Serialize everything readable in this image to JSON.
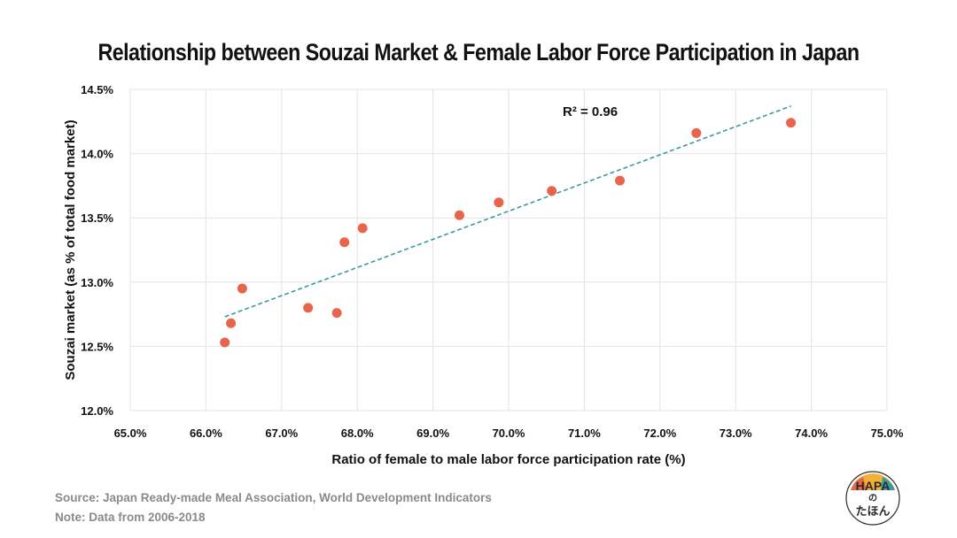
{
  "chart_data": {
    "type": "scatter",
    "title": "Relationship between Souzai Market & Female Labor Force Participation in Japan",
    "xlabel": "Ratio of female to male labor force participation rate (%)",
    "ylabel": "Souzai market (as % of total food market)",
    "xlim": [
      65.0,
      75.0
    ],
    "ylim": [
      12.0,
      14.5
    ],
    "x_ticks": [
      "65.0%",
      "66.0%",
      "67.0%",
      "68.0%",
      "69.0%",
      "70.0%",
      "71.0%",
      "72.0%",
      "73.0%",
      "74.0%",
      "75.0%"
    ],
    "y_ticks": [
      "12.0%",
      "12.5%",
      "13.0%",
      "13.5%",
      "14.0%",
      "14.5%"
    ],
    "grid": true,
    "series": [
      {
        "color": "#e8644a",
        "points": [
          {
            "x": 66.25,
            "y": 12.53
          },
          {
            "x": 66.33,
            "y": 12.68
          },
          {
            "x": 66.48,
            "y": 12.95
          },
          {
            "x": 67.35,
            "y": 12.8
          },
          {
            "x": 67.73,
            "y": 12.76
          },
          {
            "x": 67.83,
            "y": 13.31
          },
          {
            "x": 68.07,
            "y": 13.42
          },
          {
            "x": 69.35,
            "y": 13.52
          },
          {
            "x": 69.87,
            "y": 13.62
          },
          {
            "x": 70.57,
            "y": 13.71
          },
          {
            "x": 71.47,
            "y": 13.79
          },
          {
            "x": 72.48,
            "y": 14.16
          },
          {
            "x": 73.73,
            "y": 14.24
          }
        ]
      }
    ],
    "trendline": {
      "style": "dashed",
      "color": "#3a9aa3",
      "start": {
        "x": 66.25,
        "y": 12.73
      },
      "end": {
        "x": 73.73,
        "y": 14.37
      }
    },
    "annotations": [
      {
        "text": "R² = 0.96"
      }
    ]
  },
  "footer": {
    "source": "Source: Japan Ready-made Meal Association, World Development Indicators",
    "note": "Note: Data from 2006-2018"
  },
  "logo": {
    "text_top": "HAPA",
    "text_mid": "の",
    "text_bottom": "たほん",
    "colors": [
      "#e8644a",
      "#f2b134",
      "#3a9aa3",
      "#2b2b2b"
    ]
  }
}
